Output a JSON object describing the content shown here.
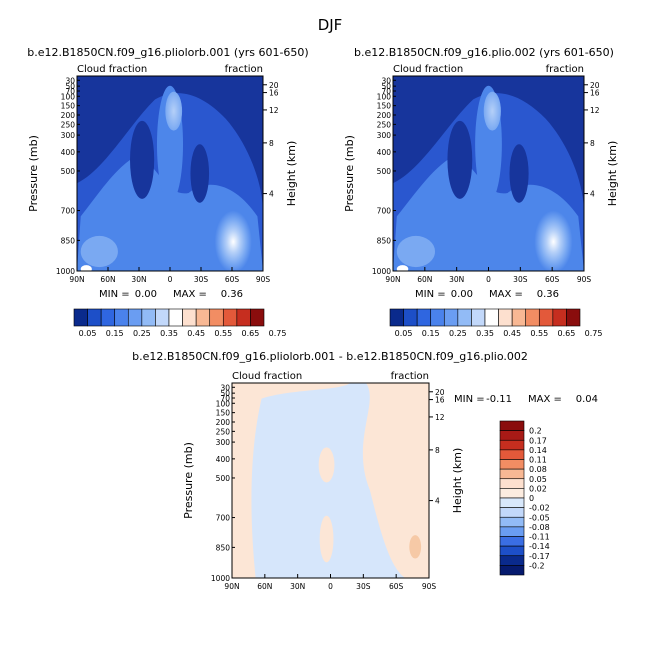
{
  "figure": {
    "title": "DJF",
    "cbar_min_label": "MIN =",
    "cbar_max_label": "MAX ="
  },
  "chart_data": [
    {
      "type": "heatmap",
      "title": "b.e12.B1850CN.f09_g16.pliolorb.001 (yrs 601-650)",
      "subtitle_left": "Cloud fraction",
      "subtitle_right": "fraction",
      "ylabel": "Pressure (mb)",
      "ylabel_right": "Height (km)",
      "xticks": [
        "90N",
        "60N",
        "30N",
        "0",
        "30S",
        "60S",
        "90S"
      ],
      "yticks": [
        "1000",
        "850",
        "700",
        "500",
        "400",
        "300",
        "250",
        "200",
        "150",
        "100",
        "70",
        "50",
        "30"
      ],
      "yticks_right": [
        "20",
        "16",
        "12",
        "8",
        "4"
      ],
      "min": "0.00",
      "max": "0.36",
      "colorbar_levels": [
        "0.05",
        "0.15",
        "0.25",
        "0.35",
        "0.45",
        "0.55",
        "0.65",
        "0.75"
      ]
    },
    {
      "type": "heatmap",
      "title": "b.e12.B1850CN.f09_g16.plio.002 (yrs 601-650)",
      "subtitle_left": "Cloud fraction",
      "subtitle_right": "fraction",
      "ylabel": "Pressure (mb)",
      "ylabel_right": "Height (km)",
      "xticks": [
        "90N",
        "60N",
        "30N",
        "0",
        "30S",
        "60S",
        "90S"
      ],
      "yticks": [
        "1000",
        "850",
        "700",
        "500",
        "400",
        "300",
        "250",
        "200",
        "150",
        "100",
        "70",
        "50",
        "30"
      ],
      "yticks_right": [
        "20",
        "16",
        "12",
        "8",
        "4"
      ],
      "min": "0.00",
      "max": "0.36",
      "colorbar_levels": [
        "0.05",
        "0.15",
        "0.25",
        "0.35",
        "0.45",
        "0.55",
        "0.65",
        "0.75"
      ]
    },
    {
      "type": "heatmap",
      "title": "b.e12.B1850CN.f09_g16.pliolorb.001 - b.e12.B1850CN.f09_g16.plio.002",
      "subtitle_left": "Cloud fraction",
      "subtitle_right": "fraction",
      "ylabel": "Pressure (mb)",
      "ylabel_right": "Height (km)",
      "xticks": [
        "90N",
        "60N",
        "30N",
        "0",
        "30S",
        "60S",
        "90S"
      ],
      "yticks": [
        "1000",
        "850",
        "700",
        "500",
        "400",
        "300",
        "250",
        "200",
        "150",
        "100",
        "70",
        "50",
        "30"
      ],
      "yticks_right": [
        "20",
        "16",
        "12",
        "8",
        "4"
      ],
      "min": "-0.11",
      "max": "0.04",
      "colorbar_levels": [
        "0.2",
        "0.17",
        "0.14",
        "0.11",
        "0.08",
        "0.05",
        "0.02",
        "0",
        "-0.02",
        "-0.05",
        "-0.08",
        "-0.11",
        "-0.14",
        "-0.17",
        "-0.2"
      ]
    }
  ],
  "colors": {
    "seq": [
      "#0a2a8c",
      "#1d4fc8",
      "#2f66e0",
      "#4a82ec",
      "#6a9df2",
      "#92bbf6",
      "#c2d8fa",
      "#ffffff",
      "#fde0cf",
      "#f8b894",
      "#f28d63",
      "#e3593a",
      "#c62e1f",
      "#8a0d0d"
    ],
    "diff": [
      "#8a0d0d",
      "#a81a16",
      "#c62e1f",
      "#e3593a",
      "#f28d63",
      "#f8b894",
      "#fde0cf",
      "#fcece0",
      "#d8e8fb",
      "#c2d8fa",
      "#92bbf6",
      "#6a9df2",
      "#3a6ee4",
      "#1d4fc8",
      "#0a2a8c",
      "#061a6e"
    ],
    "deep": "#17359c",
    "mid": "#2a57cf",
    "light": "#4d86ea",
    "pale": "#7aa9f2",
    "vpale": "#b5d0f8",
    "diff_blue": "#d6e6fb",
    "diff_peach": "#fce6d6",
    "diff_orange": "#f6c9a6"
  }
}
